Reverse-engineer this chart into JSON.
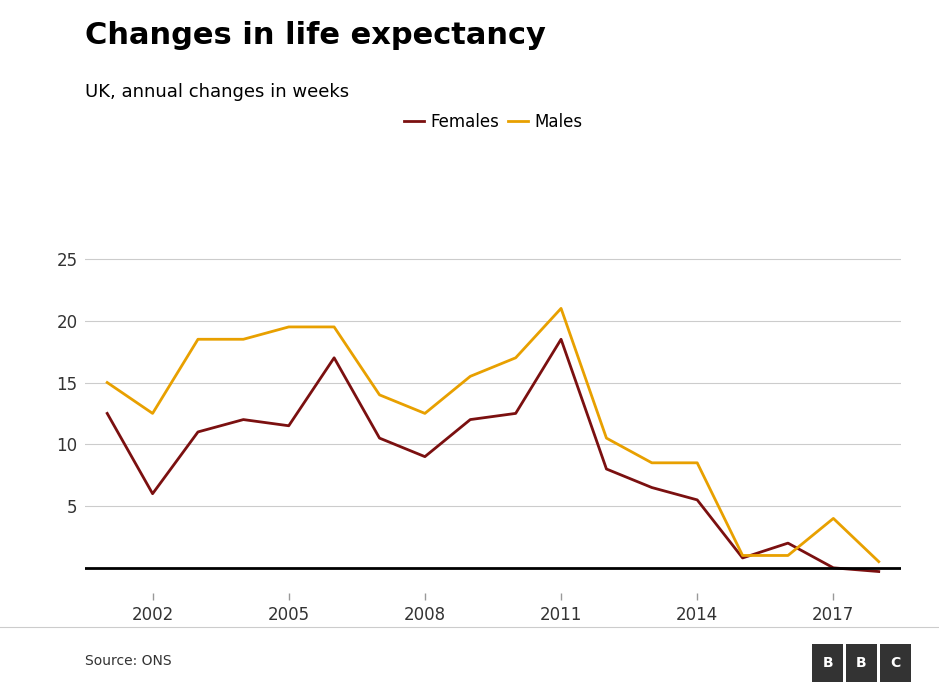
{
  "title": "Changes in life expectancy",
  "subtitle": "UK, annual changes in weeks",
  "source": "Source: ONS",
  "bbc_label": "BBC",
  "females_color": "#7B1010",
  "males_color": "#E8A000",
  "females_data": {
    "years": [
      2001,
      2002,
      2003,
      2004,
      2005,
      2006,
      2007,
      2008,
      2009,
      2010,
      2011,
      2012,
      2013,
      2014,
      2015,
      2016,
      2017,
      2018
    ],
    "values": [
      12.5,
      6.0,
      11.0,
      12.0,
      11.5,
      17.0,
      10.5,
      9.0,
      12.0,
      12.5,
      18.5,
      8.0,
      6.5,
      5.5,
      0.8,
      2.0,
      0.0,
      -0.3
    ]
  },
  "males_data": {
    "years": [
      2001,
      2002,
      2003,
      2004,
      2005,
      2006,
      2007,
      2008,
      2009,
      2010,
      2011,
      2012,
      2013,
      2014,
      2015,
      2016,
      2017,
      2018
    ],
    "values": [
      15.0,
      12.5,
      18.5,
      18.5,
      19.5,
      19.5,
      14.0,
      12.5,
      15.5,
      17.0,
      21.0,
      10.5,
      8.5,
      8.5,
      1.0,
      1.0,
      4.0,
      0.5
    ]
  },
  "xlim": [
    2000.5,
    2018.5
  ],
  "ylim": [
    -2,
    27
  ],
  "yticks": [
    0,
    5,
    10,
    15,
    20,
    25
  ],
  "xticks": [
    2002,
    2005,
    2008,
    2011,
    2014,
    2017
  ],
  "background_color": "#FFFFFF",
  "grid_color": "#CCCCCC",
  "zero_line_color": "#000000",
  "legend_females": "Females",
  "legend_males": "Males",
  "title_fontsize": 22,
  "subtitle_fontsize": 13,
  "axis_fontsize": 12,
  "line_width": 2.0
}
